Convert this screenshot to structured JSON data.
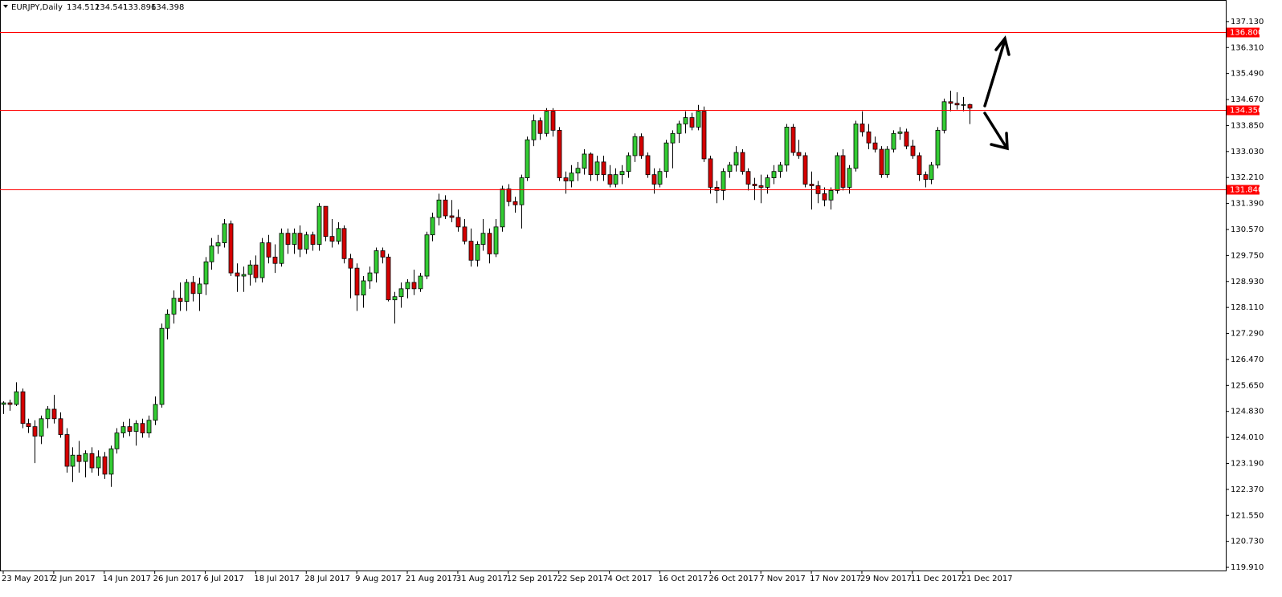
{
  "chart_data": {
    "type": "candlestick",
    "title": "EURJPY,Daily",
    "categories": [
      "23 May 2017",
      null,
      null,
      null,
      null,
      null,
      null,
      null,
      "2 Jun 2017",
      null,
      null,
      null,
      null,
      null,
      null,
      null,
      "14 Jun 2017",
      null,
      null,
      null,
      null,
      null,
      null,
      null,
      "26 Jun 2017",
      null,
      null,
      null,
      null,
      null,
      null,
      null,
      "6 Jul 2017",
      null,
      null,
      null,
      null,
      null,
      null,
      null,
      "18 Jul 2017",
      null,
      null,
      null,
      null,
      null,
      null,
      null,
      "28 Jul 2017",
      null,
      null,
      null,
      null,
      null,
      null,
      null,
      "9 Aug 2017",
      null,
      null,
      null,
      null,
      null,
      null,
      null,
      "21 Aug 2017",
      null,
      null,
      null,
      null,
      null,
      null,
      null,
      "31 Aug 2017",
      null,
      null,
      null,
      null,
      null,
      null,
      null,
      "12 Sep 2017",
      null,
      null,
      null,
      null,
      null,
      null,
      null,
      "22 Sep 2017",
      null,
      null,
      null,
      null,
      null,
      null,
      null,
      "4 Oct 2017",
      null,
      null,
      null,
      null,
      null,
      null,
      null,
      "16 Oct 2017",
      null,
      null,
      null,
      null,
      null,
      null,
      null,
      "26 Oct 2017",
      null,
      null,
      null,
      null,
      null,
      null,
      null,
      "7 Nov 2017",
      null,
      null,
      null,
      null,
      null,
      null,
      null,
      "17 Nov 2017",
      null,
      null,
      null,
      null,
      null,
      null,
      null,
      "29 Nov 2017",
      null,
      null,
      null,
      null,
      null,
      null,
      null,
      "11 Dec 2017",
      null,
      null,
      null,
      null,
      null,
      null,
      null,
      "21 Dec 2017",
      null
    ],
    "open": [
      125.05,
      125.1,
      125.05,
      125.45,
      124.45,
      124.35,
      124.05,
      124.6,
      124.9,
      124.6,
      124.1,
      123.1,
      123.45,
      123.25,
      123.5,
      123.05,
      123.4,
      122.85,
      123.65,
      124.15,
      124.35,
      124.2,
      124.45,
      124.15,
      124.55,
      125.05,
      127.45,
      127.9,
      128.4,
      128.3,
      128.9,
      128.55,
      128.85,
      129.55,
      130.05,
      130.15,
      130.75,
      129.2,
      129.1,
      129.15,
      129.45,
      129.05,
      130.15,
      129.7,
      129.5,
      130.45,
      130.1,
      130.45,
      129.95,
      130.4,
      130.1,
      131.3,
      130.35,
      130.2,
      130.6,
      129.65,
      129.35,
      128.5,
      128.95,
      129.2,
      129.9,
      129.7,
      128.35,
      128.45,
      128.7,
      128.9,
      128.7,
      129.1,
      130.4,
      130.95,
      131.5,
      131,
      130.95,
      130.65,
      130.2,
      129.6,
      130.1,
      130.45,
      129.8,
      130.65,
      131.85,
      131.45,
      131.35,
      132.2,
      133.4,
      134,
      133.6,
      134.3,
      133.7,
      132.2,
      132.1,
      132.35,
      132.5,
      132.95,
      132.3,
      132.7,
      132.3,
      132,
      132.3,
      132.4,
      132.9,
      133.5,
      132.9,
      132.3,
      132,
      132.4,
      133.3,
      133.6,
      133.9,
      134.1,
      133.8,
      134.3,
      132.8,
      131.9,
      131.8,
      132.4,
      132.6,
      133,
      132.4,
      132,
      131.95,
      131.9,
      132.2,
      132.4,
      132.6,
      133.8,
      133,
      132.9,
      132,
      131.95,
      131.7,
      131.5,
      131.8,
      132.9,
      131.9,
      132.5,
      133.9,
      133.65,
      133.3,
      133.1,
      132.3,
      133.1,
      133.6,
      133.65,
      133.2,
      132.9,
      132.3,
      132.15,
      132.6,
      133.7,
      134.6,
      134.55,
      134.5,
      134.512
    ],
    "high": [
      125.15,
      125.2,
      125.75,
      125.55,
      124.6,
      124.55,
      124.7,
      125,
      125.35,
      124.8,
      124.3,
      123.7,
      123.9,
      123.6,
      123.7,
      123.6,
      123.55,
      123.75,
      124.3,
      124.5,
      124.6,
      124.55,
      124.6,
      124.7,
      125.3,
      127.6,
      128.05,
      128.65,
      128.9,
      129,
      129.1,
      129.05,
      129.7,
      130.3,
      130.4,
      130.9,
      130.85,
      129.5,
      129.4,
      129.6,
      129.75,
      130.3,
      130.4,
      130.1,
      130.6,
      130.6,
      130.6,
      130.7,
      130.5,
      130.5,
      131.4,
      131.3,
      130.9,
      130.8,
      130.7,
      129.8,
      129.5,
      129.1,
      129.4,
      130,
      130,
      129.8,
      128.6,
      128.9,
      129,
      129.3,
      129.2,
      130.5,
      131.1,
      131.7,
      131.65,
      131.5,
      131.2,
      130.9,
      130.6,
      130.2,
      130.9,
      130.6,
      130.9,
      131.95,
      132,
      131.6,
      132.3,
      133.5,
      134.2,
      134.1,
      134.4,
      134.4,
      133.8,
      132.4,
      132.6,
      132.7,
      133.1,
      133,
      132.9,
      132.9,
      132.6,
      132.5,
      132.6,
      133,
      133.6,
      133.6,
      133,
      132.5,
      132.5,
      133.4,
      133.7,
      134,
      134.3,
      134.25,
      134.5,
      134.45,
      132.9,
      132.1,
      132.5,
      132.7,
      133.2,
      133.1,
      132.5,
      132.2,
      132.3,
      132.3,
      132.6,
      132.7,
      133.9,
      133.9,
      133.4,
      133,
      132.4,
      132.1,
      131.9,
      131.9,
      133,
      133.1,
      132.6,
      134,
      134.3,
      133.9,
      133.5,
      133.2,
      133.2,
      133.7,
      133.8,
      133.75,
      133.4,
      133,
      132.4,
      132.7,
      133.8,
      134.7,
      134.95,
      134.9,
      134.75,
      134.541
    ],
    "low": [
      124.75,
      124.85,
      125,
      124.3,
      124.15,
      123.2,
      123.8,
      124.3,
      124.45,
      124,
      122.9,
      122.6,
      122.9,
      122.75,
      122.9,
      122.8,
      122.7,
      122.45,
      123.5,
      124,
      124.05,
      123.75,
      124,
      124,
      124.4,
      124.95,
      127.1,
      127.6,
      128,
      128,
      128.3,
      128,
      128.5,
      129.3,
      129.8,
      130,
      129.1,
      128.6,
      128.6,
      128.8,
      128.9,
      128.9,
      129.5,
      129.2,
      129.4,
      129.8,
      129.8,
      129.7,
      129.8,
      129.9,
      129.9,
      130.2,
      130,
      130.1,
      129.5,
      128.4,
      128,
      128.1,
      128.7,
      128.9,
      129.5,
      128.3,
      127.6,
      128.1,
      128.4,
      128.5,
      128.6,
      129,
      130.2,
      130.7,
      130.9,
      130.8,
      130.5,
      130.1,
      129.4,
      129.4,
      129.9,
      129.5,
      129.7,
      130.5,
      131.3,
      131.1,
      130.6,
      132.1,
      133.2,
      133.4,
      133.5,
      133.5,
      132.1,
      131.7,
      131.9,
      132.1,
      132.3,
      132.1,
      132.1,
      132.1,
      131.9,
      131.9,
      132,
      132.2,
      132.7,
      132.8,
      132.2,
      131.7,
      131.9,
      132.2,
      132.5,
      133.3,
      133.6,
      133.7,
      133.7,
      132.7,
      131.7,
      131.4,
      131.5,
      132.2,
      132.4,
      132.3,
      131.8,
      131.5,
      131.4,
      131.7,
      132,
      132.2,
      132.4,
      132.9,
      132.8,
      131.9,
      131.2,
      131.4,
      131.3,
      131.2,
      131.7,
      131.8,
      131.7,
      132.4,
      133.5,
      133.1,
      133,
      132.2,
      132.2,
      133,
      133.4,
      133.1,
      132.8,
      132.1,
      131.9,
      132,
      132.5,
      133.6,
      134.3,
      134.35,
      134.3,
      133.896
    ],
    "close": [
      125.1,
      125.05,
      125.45,
      124.45,
      124.35,
      124.05,
      124.6,
      124.9,
      124.6,
      124.1,
      123.1,
      123.45,
      123.25,
      123.5,
      123.05,
      123.4,
      122.85,
      123.65,
      124.15,
      124.35,
      124.2,
      124.45,
      124.15,
      124.55,
      125.05,
      127.45,
      127.9,
      128.4,
      128.3,
      128.9,
      128.55,
      128.85,
      129.55,
      130.05,
      130.15,
      130.75,
      129.2,
      129.1,
      129.15,
      129.45,
      129.05,
      130.15,
      129.7,
      129.5,
      130.45,
      130.1,
      130.45,
      129.95,
      130.4,
      130.1,
      131.3,
      130.35,
      130.2,
      130.6,
      129.65,
      129.35,
      128.5,
      128.95,
      129.2,
      129.9,
      129.7,
      128.35,
      128.45,
      128.7,
      128.9,
      128.7,
      129.1,
      130.4,
      130.95,
      131.5,
      131,
      130.95,
      130.65,
      130.2,
      129.6,
      130.1,
      130.45,
      129.8,
      130.65,
      131.85,
      131.45,
      131.35,
      132.2,
      133.4,
      134,
      133.6,
      134.3,
      133.7,
      132.2,
      132.1,
      132.35,
      132.5,
      132.95,
      132.3,
      132.7,
      132.3,
      132,
      132.3,
      132.4,
      132.9,
      133.5,
      132.9,
      132.3,
      132,
      132.4,
      133.3,
      133.6,
      133.9,
      134.1,
      133.8,
      134.3,
      132.8,
      131.9,
      131.8,
      132.4,
      132.6,
      133,
      132.4,
      132,
      131.95,
      131.9,
      132.2,
      132.4,
      132.6,
      133.8,
      133,
      132.9,
      132,
      131.95,
      131.7,
      131.5,
      131.8,
      132.9,
      131.9,
      132.5,
      133.9,
      133.65,
      133.3,
      133.1,
      132.3,
      133.1,
      133.6,
      133.65,
      133.2,
      132.9,
      132.3,
      132.15,
      132.6,
      133.7,
      134.6,
      134.55,
      134.5,
      134.51,
      134.398
    ],
    "up_color": "#33cc33",
    "down_color": "#d40000",
    "level_color": "#ff0000",
    "ylim": [
      119.81,
      137.81
    ],
    "yticks": [
      {
        "value": 137.13,
        "label": "137.130"
      },
      {
        "value": 136.31,
        "label": "136.310"
      },
      {
        "value": 135.49,
        "label": "135.490"
      },
      {
        "value": 134.67,
        "label": "134.670"
      },
      {
        "value": 133.85,
        "label": "133.850"
      },
      {
        "value": 133.03,
        "label": "133.030"
      },
      {
        "value": 132.21,
        "label": "132.210"
      },
      {
        "value": 131.39,
        "label": "131.390"
      },
      {
        "value": 130.57,
        "label": "130.570"
      },
      {
        "value": 129.75,
        "label": "129.750"
      },
      {
        "value": 128.93,
        "label": "128.930"
      },
      {
        "value": 128.11,
        "label": "128.110"
      },
      {
        "value": 127.29,
        "label": "127.290"
      },
      {
        "value": 126.47,
        "label": "126.470"
      },
      {
        "value": 125.65,
        "label": "125.650"
      },
      {
        "value": 124.83,
        "label": "124.830"
      },
      {
        "value": 124.01,
        "label": "124.010"
      },
      {
        "value": 123.19,
        "label": "123.190"
      },
      {
        "value": 122.37,
        "label": "122.370"
      },
      {
        "value": 121.55,
        "label": "121.550"
      },
      {
        "value": 120.73,
        "label": "120.730"
      },
      {
        "value": 119.91,
        "label": "119.910"
      }
    ],
    "levels": [
      {
        "value": 136.8,
        "label": "136.800"
      },
      {
        "value": 134.35,
        "label": "134.350"
      },
      {
        "value": 131.84,
        "label": "131.840"
      }
    ]
  }
}
